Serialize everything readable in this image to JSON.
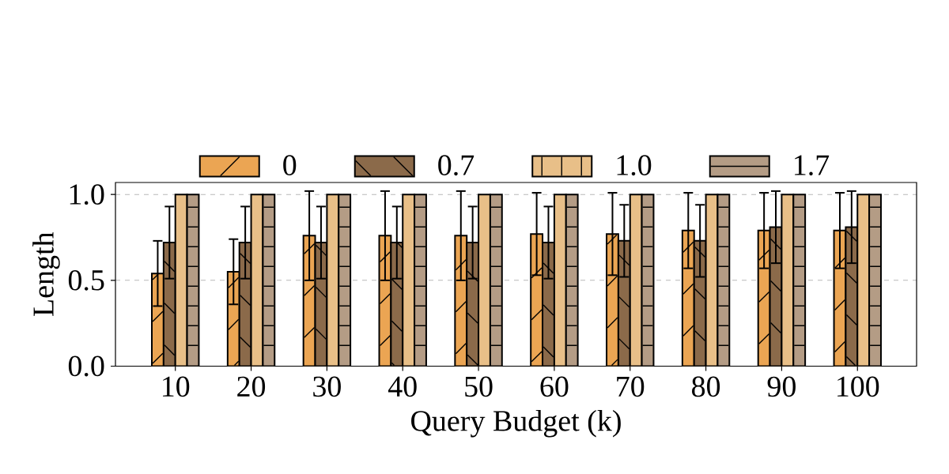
{
  "chart_data": {
    "type": "bar",
    "xlabel": "Query Budget (k)",
    "ylabel": "Length",
    "categories": [
      "10",
      "20",
      "30",
      "40",
      "50",
      "60",
      "70",
      "80",
      "90",
      "100"
    ],
    "series": [
      {
        "name": "0",
        "color": "#eba553",
        "values": [
          0.54,
          0.55,
          0.76,
          0.76,
          0.76,
          0.77,
          0.77,
          0.79,
          0.79,
          0.79
        ],
        "errors": [
          0.19,
          0.19,
          0.26,
          0.26,
          0.26,
          0.24,
          0.24,
          0.22,
          0.22,
          0.22
        ]
      },
      {
        "name": "0.7",
        "color": "#8b6a4a",
        "values": [
          0.72,
          0.72,
          0.72,
          0.72,
          0.72,
          0.72,
          0.73,
          0.73,
          0.81,
          0.81
        ],
        "errors": [
          0.21,
          0.21,
          0.21,
          0.21,
          0.21,
          0.21,
          0.21,
          0.21,
          0.21,
          0.21
        ]
      },
      {
        "name": "1.0",
        "color": "#e8bf88",
        "values": [
          1,
          1,
          1,
          1,
          1,
          1,
          1,
          1,
          1,
          1
        ]
      },
      {
        "name": "1.7",
        "color": "#b49c85",
        "values": [
          1,
          1,
          1,
          1,
          1,
          1,
          1,
          1,
          1,
          1
        ]
      }
    ],
    "ylim": [
      0,
      1.07
    ],
    "yticks": [
      {
        "value": 0,
        "label": "0.0"
      },
      {
        "value": 0.5,
        "label": "0.5"
      },
      {
        "value": 1,
        "label": "1.0"
      }
    ],
    "grid": "y",
    "legend": "top"
  }
}
